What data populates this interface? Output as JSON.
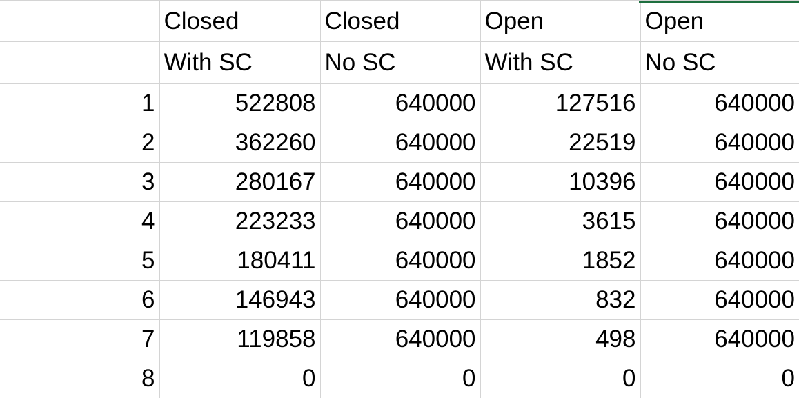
{
  "columns": [
    {
      "line1": "Closed",
      "line2": "With SC"
    },
    {
      "line1": "Closed",
      "line2": "No SC"
    },
    {
      "line1": "Open",
      "line2": "With SC"
    },
    {
      "line1": "Open",
      "line2": "No SC"
    }
  ],
  "rows": [
    {
      "index": "1",
      "values": [
        "522808",
        "640000",
        "127516",
        "640000"
      ]
    },
    {
      "index": "2",
      "values": [
        "362260",
        "640000",
        "22519",
        "640000"
      ]
    },
    {
      "index": "3",
      "values": [
        "280167",
        "640000",
        "10396",
        "640000"
      ]
    },
    {
      "index": "4",
      "values": [
        "223233",
        "640000",
        "3615",
        "640000"
      ]
    },
    {
      "index": "5",
      "values": [
        "180411",
        "640000",
        "1852",
        "640000"
      ]
    },
    {
      "index": "6",
      "values": [
        "146943",
        "640000",
        "832",
        "640000"
      ]
    },
    {
      "index": "7",
      "values": [
        "119858",
        "640000",
        "498",
        "640000"
      ]
    },
    {
      "index": "8",
      "values": [
        "0",
        "0",
        "0",
        "0"
      ]
    }
  ],
  "colors": {
    "gridline": "#d4d4d4",
    "active_column_accent": "#1e6f3f"
  }
}
